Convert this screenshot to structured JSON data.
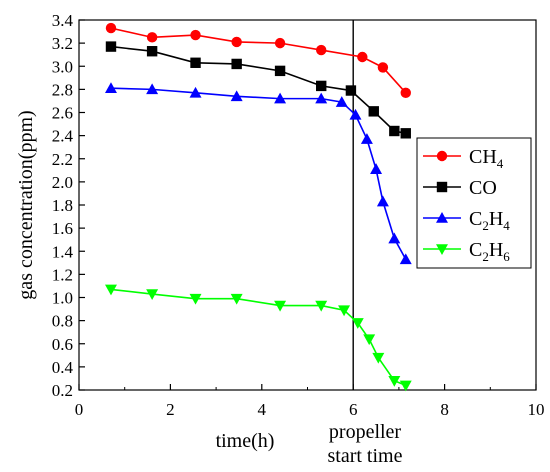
{
  "chart_data": {
    "type": "line",
    "xlabel": "time(h)",
    "ylabel": "gas concentration(ppm)",
    "xlim": [
      0,
      10
    ],
    "ylim": [
      0.2,
      3.4
    ],
    "xticks": [
      0,
      2,
      4,
      6,
      8,
      10
    ],
    "yticks": [
      0.2,
      0.4,
      0.6,
      0.8,
      1.0,
      1.2,
      1.4,
      1.6,
      1.8,
      2.0,
      2.2,
      2.4,
      2.6,
      2.8,
      3.0,
      3.2,
      3.4
    ],
    "grid": false,
    "legend_position": "right",
    "annotation": {
      "x": 6,
      "lines": [
        "propeller",
        "start time"
      ]
    },
    "series": [
      {
        "name": "CH4",
        "name_main": "CH",
        "name_sub": "4",
        "color": "#ff0000",
        "marker": "circle",
        "x": [
          0.7,
          1.6,
          2.55,
          3.45,
          4.4,
          5.3,
          6.2,
          6.65,
          7.15
        ],
        "y": [
          3.33,
          3.25,
          3.27,
          3.21,
          3.2,
          3.14,
          3.08,
          2.99,
          2.77
        ]
      },
      {
        "name": "CO",
        "name_main": "CO",
        "name_sub": "",
        "color": "#000000",
        "marker": "square",
        "x": [
          0.7,
          1.6,
          2.55,
          3.45,
          4.4,
          5.3,
          5.95,
          6.45,
          6.9,
          7.15
        ],
        "y": [
          3.17,
          3.13,
          3.03,
          3.02,
          2.96,
          2.83,
          2.79,
          2.61,
          2.44,
          2.42
        ]
      },
      {
        "name": "C2H4",
        "name_main": "C",
        "name_sub": "2",
        "name_main2": "H",
        "name_sub2": "4",
        "color": "#0000ff",
        "marker": "triangle-up",
        "x": [
          0.7,
          1.6,
          2.55,
          3.45,
          4.4,
          5.3,
          5.75,
          6.05,
          6.3,
          6.5,
          6.65,
          6.9,
          7.15
        ],
        "y": [
          2.81,
          2.8,
          2.77,
          2.74,
          2.72,
          2.72,
          2.69,
          2.58,
          2.37,
          2.11,
          1.83,
          1.51,
          1.33
        ]
      },
      {
        "name": "C2H6",
        "name_main": "C",
        "name_sub": "2",
        "name_main2": "H",
        "name_sub2": "6",
        "color": "#00ff00",
        "marker": "triangle-down",
        "x": [
          0.7,
          1.6,
          2.55,
          3.45,
          4.4,
          5.3,
          5.8,
          6.1,
          6.35,
          6.55,
          6.9,
          7.15
        ],
        "y": [
          1.07,
          1.03,
          0.99,
          0.99,
          0.93,
          0.93,
          0.89,
          0.78,
          0.64,
          0.48,
          0.28,
          0.24
        ]
      }
    ]
  }
}
